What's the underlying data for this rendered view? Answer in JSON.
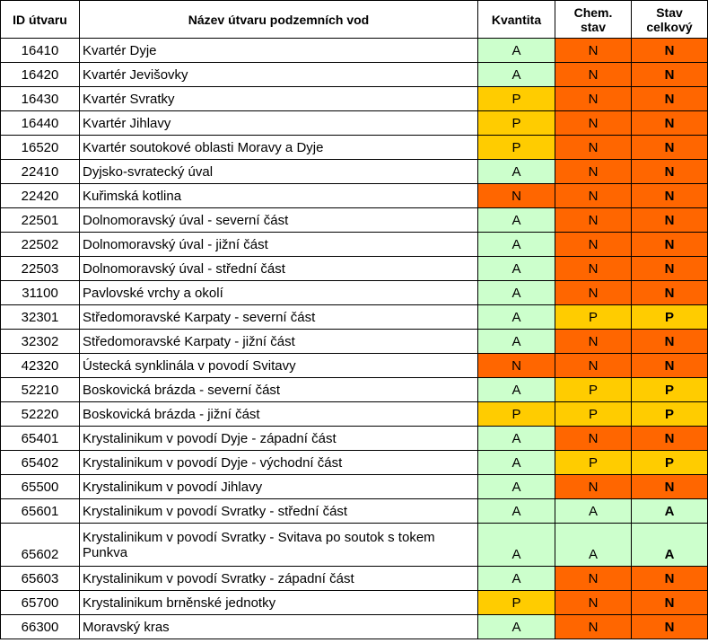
{
  "headers": {
    "id": "ID útvaru",
    "name": "Název útvaru podzemních vod",
    "quantity": "Kvantita",
    "chem_line1": "Chem.",
    "chem_line2": "stav",
    "total_line1": "Stav",
    "total_line2": "celkový"
  },
  "colors": {
    "A": "#ccffcc",
    "P": "#ffcc00",
    "N": "#ff6600"
  },
  "rows": [
    {
      "id": "16410",
      "name": "Kvartér Dyje",
      "quantity": "A",
      "chem": "N",
      "total": "N"
    },
    {
      "id": "16420",
      "name": "Kvartér Jevišovky",
      "quantity": "A",
      "chem": "N",
      "total": "N"
    },
    {
      "id": "16430",
      "name": "Kvartér Svratky",
      "quantity": "P",
      "chem": "N",
      "total": "N"
    },
    {
      "id": "16440",
      "name": "Kvartér Jihlavy",
      "quantity": "P",
      "chem": "N",
      "total": "N"
    },
    {
      "id": "16520",
      "name": "Kvartér soutokové oblasti Moravy a Dyje",
      "quantity": "P",
      "chem": "N",
      "total": "N"
    },
    {
      "id": "22410",
      "name": "Dyjsko-svratecký úval",
      "quantity": "A",
      "chem": "N",
      "total": "N"
    },
    {
      "id": "22420",
      "name": "Kuřimská kotlina",
      "quantity": "N",
      "chem": "N",
      "total": "N"
    },
    {
      "id": "22501",
      "name": "Dolnomoravský úval - severní část",
      "quantity": "A",
      "chem": "N",
      "total": "N"
    },
    {
      "id": "22502",
      "name": "Dolnomoravský úval - jižní část",
      "quantity": "A",
      "chem": "N",
      "total": "N"
    },
    {
      "id": "22503",
      "name": "Dolnomoravský úval - střední část",
      "quantity": "A",
      "chem": "N",
      "total": "N"
    },
    {
      "id": "31100",
      "name": "Pavlovské vrchy a okolí",
      "quantity": "A",
      "chem": "N",
      "total": "N"
    },
    {
      "id": "32301",
      "name": "Středomoravské Karpaty - severní část",
      "quantity": "A",
      "chem": "P",
      "total": "P"
    },
    {
      "id": "32302",
      "name": "Středomoravské Karpaty - jižní část",
      "quantity": "A",
      "chem": "N",
      "total": "N"
    },
    {
      "id": "42320",
      "name": "Ústecká synklinála v povodí Svitavy",
      "quantity": "N",
      "chem": "N",
      "total": "N"
    },
    {
      "id": "52210",
      "name": "Boskovická brázda - severní část",
      "quantity": "A",
      "chem": "P",
      "total": "P"
    },
    {
      "id": "52220",
      "name": "Boskovická brázda - jižní část",
      "quantity": "P",
      "chem": "P",
      "total": "P"
    },
    {
      "id": "65401",
      "name": "Krystalinikum v povodí Dyje - západní část",
      "quantity": "A",
      "chem": "N",
      "total": "N"
    },
    {
      "id": "65402",
      "name": "Krystalinikum v povodí Dyje - východní část",
      "quantity": "A",
      "chem": "P",
      "total": "P"
    },
    {
      "id": "65500",
      "name": "Krystalinikum v povodí Jihlavy",
      "quantity": "A",
      "chem": "N",
      "total": "N"
    },
    {
      "id": "65601",
      "name": "Krystalinikum v povodí Svratky - střední část",
      "quantity": "A",
      "chem": "A",
      "total": "A"
    },
    {
      "id": "65602",
      "name": "Krystalinikum v povodí Svratky - Svitava po soutok s tokem Punkva",
      "quantity": "A",
      "chem": "A",
      "total": "A"
    },
    {
      "id": "65603",
      "name": "Krystalinikum v povodí Svratky - západní část",
      "quantity": "A",
      "chem": "N",
      "total": "N"
    },
    {
      "id": "65700",
      "name": "Krystalinikum brněnské jednotky",
      "quantity": "P",
      "chem": "N",
      "total": "N"
    },
    {
      "id": "66300",
      "name": "Moravský kras",
      "quantity": "A",
      "chem": "N",
      "total": "N"
    }
  ]
}
